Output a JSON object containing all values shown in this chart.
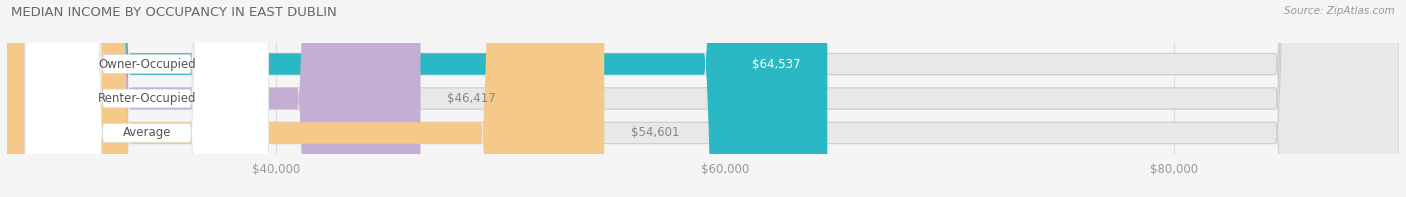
{
  "title": "MEDIAN INCOME BY OCCUPANCY IN EAST DUBLIN",
  "source": "Source: ZipAtlas.com",
  "categories": [
    "Owner-Occupied",
    "Renter-Occupied",
    "Average"
  ],
  "values": [
    64537,
    46417,
    54601
  ],
  "bar_colors": [
    "#2ab8c4",
    "#c4aed4",
    "#f5c98a"
  ],
  "value_labels": [
    "$64,537",
    "$46,417",
    "$54,601"
  ],
  "value_label_colors": [
    "#ffffff",
    "#888888",
    "#888888"
  ],
  "value_label_inside": [
    true,
    false,
    false
  ],
  "xmin": 28000,
  "xmax": 90000,
  "xticks": [
    40000,
    60000,
    80000
  ],
  "xtick_labels": [
    "$40,000",
    "$60,000",
    "$80,000"
  ],
  "title_fontsize": 9.5,
  "label_fontsize": 8.5,
  "tick_fontsize": 8.5,
  "source_fontsize": 7.5,
  "bar_height": 0.62,
  "background_color": "#f5f5f5",
  "bar_bg_color": "#e8e8e8",
  "label_box_color": "#ffffff",
  "grid_color": "#dddddd",
  "label_text_color": "#555555"
}
